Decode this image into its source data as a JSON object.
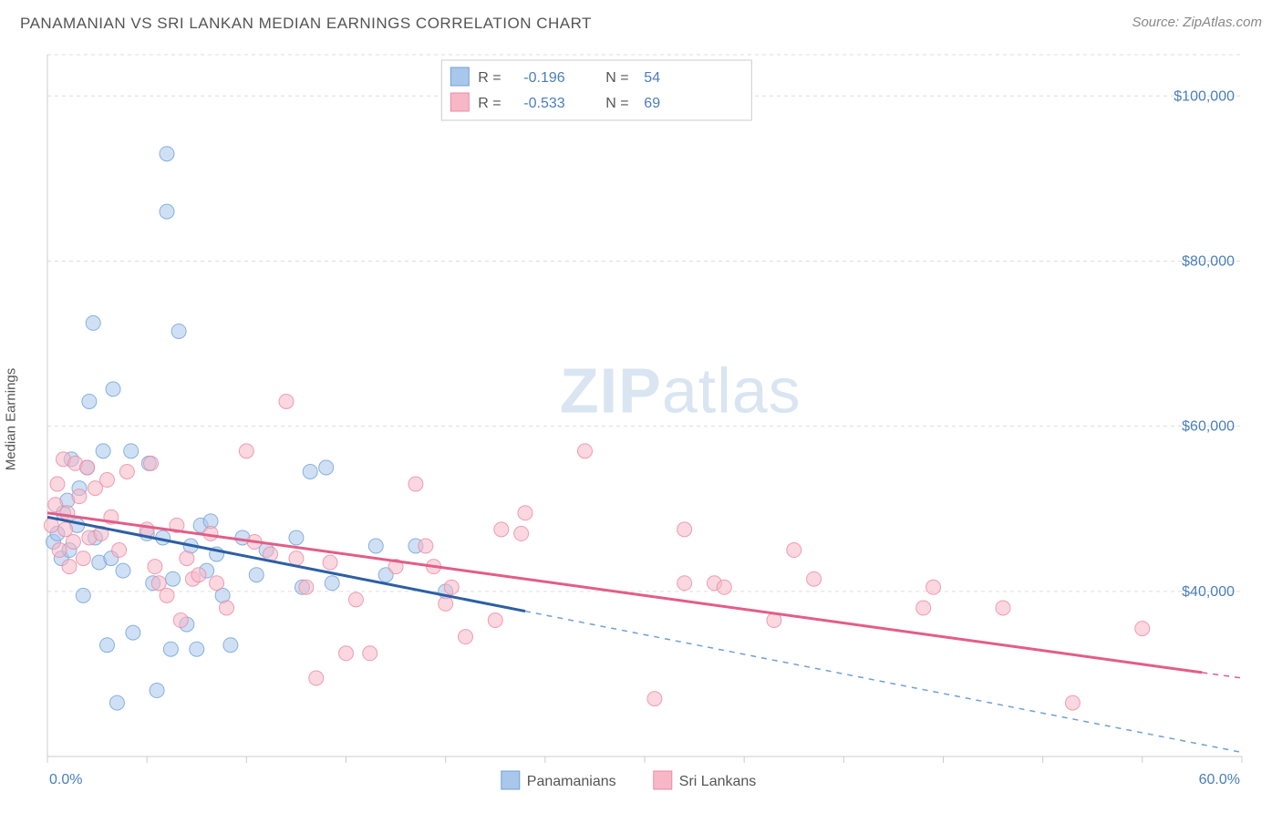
{
  "title": "PANAMANIAN VS SRI LANKAN MEDIAN EARNINGS CORRELATION CHART",
  "source": "Source: ZipAtlas.com",
  "ylabel": "Median Earnings",
  "watermark": {
    "bold": "ZIP",
    "rest": "atlas"
  },
  "chart": {
    "type": "scatter",
    "background_color": "#ffffff",
    "grid_color": "#dddddd",
    "axis_color": "#cccccc",
    "tick_font_color": "#4a7ebb",
    "xlim": [
      0,
      60
    ],
    "ylim": [
      20000,
      105000
    ],
    "x_ticks_minor": [
      0,
      5,
      10,
      15,
      20,
      25,
      30,
      35,
      40,
      45,
      50,
      55,
      60
    ],
    "x_tick_labels": {
      "0": "0.0%",
      "60": "60.0%"
    },
    "y_ticks": [
      40000,
      60000,
      80000,
      100000
    ],
    "y_tick_labels": {
      "40000": "$40,000",
      "60000": "$60,000",
      "80000": "$80,000",
      "100000": "$100,000"
    },
    "marker_radius": 8,
    "marker_opacity": 0.55,
    "line_width": 3,
    "series": [
      {
        "name": "Panamanians",
        "fill": "#a9c7eb",
        "stroke": "#6fa0d8",
        "trend_color": "#2c5fa5",
        "trend_dash_color": "#6fa0d8",
        "R": "-0.196",
        "N": "54",
        "trend": {
          "x0": 0,
          "y0": 49000,
          "x1": 60,
          "y1": 20500,
          "solid_until_x": 24
        },
        "points": [
          [
            0.3,
            46000
          ],
          [
            0.5,
            47000
          ],
          [
            0.7,
            44000
          ],
          [
            0.8,
            49500
          ],
          [
            1.0,
            51000
          ],
          [
            1.1,
            45000
          ],
          [
            1.2,
            56000
          ],
          [
            1.5,
            48000
          ],
          [
            1.6,
            52500
          ],
          [
            1.8,
            39500
          ],
          [
            2.0,
            55000
          ],
          [
            2.1,
            63000
          ],
          [
            2.3,
            72500
          ],
          [
            2.4,
            46500
          ],
          [
            2.6,
            43500
          ],
          [
            2.8,
            57000
          ],
          [
            3.0,
            33500
          ],
          [
            3.2,
            44000
          ],
          [
            3.3,
            64500
          ],
          [
            3.5,
            26500
          ],
          [
            3.8,
            42500
          ],
          [
            4.2,
            57000
          ],
          [
            4.3,
            35000
          ],
          [
            5.0,
            47000
          ],
          [
            5.1,
            55500
          ],
          [
            5.3,
            41000
          ],
          [
            5.5,
            28000
          ],
          [
            5.8,
            46500
          ],
          [
            6.0,
            93000
          ],
          [
            6.0,
            86000
          ],
          [
            6.2,
            33000
          ],
          [
            6.3,
            41500
          ],
          [
            6.6,
            71500
          ],
          [
            7.0,
            36000
          ],
          [
            7.2,
            45500
          ],
          [
            7.5,
            33000
          ],
          [
            7.7,
            48000
          ],
          [
            8.0,
            42500
          ],
          [
            8.2,
            48500
          ],
          [
            8.5,
            44500
          ],
          [
            8.8,
            39500
          ],
          [
            9.2,
            33500
          ],
          [
            9.8,
            46500
          ],
          [
            10.5,
            42000
          ],
          [
            11.0,
            45000
          ],
          [
            12.5,
            46500
          ],
          [
            12.8,
            40500
          ],
          [
            13.2,
            54500
          ],
          [
            14.0,
            55000
          ],
          [
            14.3,
            41000
          ],
          [
            16.5,
            45500
          ],
          [
            17.0,
            42000
          ],
          [
            18.5,
            45500
          ],
          [
            20.0,
            40000
          ]
        ]
      },
      {
        "name": "Sri Lankans",
        "fill": "#f7b7c7",
        "stroke": "#e98aa5",
        "trend_color": "#e35d86",
        "R": "-0.533",
        "N": "69",
        "trend": {
          "x0": 0,
          "y0": 49500,
          "x1": 60,
          "y1": 29500,
          "solid_until_x": 58
        },
        "points": [
          [
            0.2,
            48000
          ],
          [
            0.4,
            50500
          ],
          [
            0.5,
            53000
          ],
          [
            0.6,
            45000
          ],
          [
            0.8,
            56000
          ],
          [
            0.9,
            47500
          ],
          [
            1.0,
            49500
          ],
          [
            1.1,
            43000
          ],
          [
            1.3,
            46000
          ],
          [
            1.4,
            55500
          ],
          [
            1.6,
            51500
          ],
          [
            1.8,
            44000
          ],
          [
            2.0,
            55000
          ],
          [
            2.1,
            46500
          ],
          [
            2.4,
            52500
          ],
          [
            2.7,
            47000
          ],
          [
            3.0,
            53500
          ],
          [
            3.2,
            49000
          ],
          [
            3.6,
            45000
          ],
          [
            4.0,
            54500
          ],
          [
            5.0,
            47500
          ],
          [
            5.2,
            55500
          ],
          [
            5.4,
            43000
          ],
          [
            5.6,
            41000
          ],
          [
            6.0,
            39500
          ],
          [
            6.5,
            48000
          ],
          [
            6.7,
            36500
          ],
          [
            7.0,
            44000
          ],
          [
            7.3,
            41500
          ],
          [
            7.6,
            42000
          ],
          [
            8.2,
            47000
          ],
          [
            8.5,
            41000
          ],
          [
            9.0,
            38000
          ],
          [
            10.0,
            57000
          ],
          [
            10.4,
            46000
          ],
          [
            11.2,
            44500
          ],
          [
            12.0,
            63000
          ],
          [
            12.5,
            44000
          ],
          [
            13.0,
            40500
          ],
          [
            13.5,
            29500
          ],
          [
            14.2,
            43500
          ],
          [
            15.0,
            32500
          ],
          [
            15.5,
            39000
          ],
          [
            16.2,
            32500
          ],
          [
            17.5,
            43000
          ],
          [
            18.5,
            53000
          ],
          [
            19.0,
            45500
          ],
          [
            19.4,
            43000
          ],
          [
            20.0,
            38500
          ],
          [
            20.3,
            40500
          ],
          [
            21.0,
            34500
          ],
          [
            22.5,
            36500
          ],
          [
            22.8,
            47500
          ],
          [
            23.8,
            47000
          ],
          [
            24.0,
            49500
          ],
          [
            27.0,
            57000
          ],
          [
            30.5,
            27000
          ],
          [
            32.0,
            41000
          ],
          [
            32.0,
            47500
          ],
          [
            33.5,
            41000
          ],
          [
            34.0,
            40500
          ],
          [
            36.5,
            36500
          ],
          [
            37.5,
            45000
          ],
          [
            38.5,
            41500
          ],
          [
            44.0,
            38000
          ],
          [
            44.5,
            40500
          ],
          [
            48.0,
            38000
          ],
          [
            51.5,
            26500
          ],
          [
            55.0,
            35500
          ]
        ]
      }
    ]
  }
}
